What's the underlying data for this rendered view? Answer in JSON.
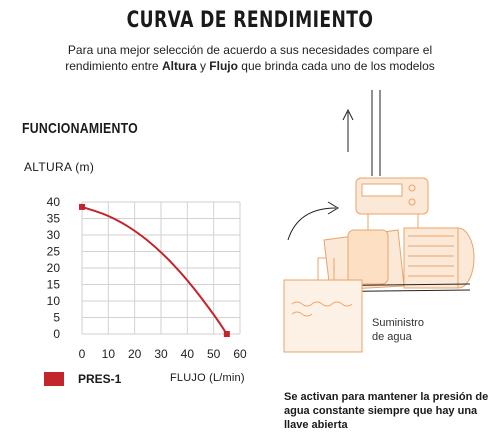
{
  "header": {
    "title": "CURVA DE RENDIMIENTO",
    "subtitle_pre": "Para una mejor selección de acuerdo a sus necesidades compare el rendimiento entre ",
    "subtitle_b1": "Altura",
    "subtitle_mid": " y ",
    "subtitle_b2": "Flujo",
    "subtitle_post": " que brinda cada uno de los modelos"
  },
  "section_title": "FUNCIONAMIENTO",
  "chart_data": {
    "type": "line",
    "ylabel": "ALTURA (m)",
    "xlabel": "FLUJO (L/min)",
    "xlim": [
      0,
      60
    ],
    "ylim": [
      0,
      40
    ],
    "xticks": [
      0,
      10,
      20,
      30,
      40,
      50,
      60
    ],
    "yticks": [
      0,
      5,
      10,
      15,
      20,
      25,
      30,
      35,
      40
    ],
    "grid": true,
    "series": [
      {
        "name": "PRES-1",
        "color": "#c3252c",
        "x": [
          0,
          10,
          20,
          30,
          40,
          50,
          55
        ],
        "y": [
          38.5,
          36,
          31.5,
          25,
          16.5,
          6,
          0
        ]
      }
    ]
  },
  "diagram": {
    "supply_line1": "Suministro",
    "supply_line2": "de agua",
    "note": "Se activan para mantener la presión de agua constante siempre que hay una llave abierta",
    "accent_color": "#e9a46a"
  }
}
